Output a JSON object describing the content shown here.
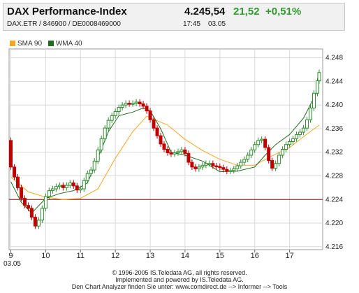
{
  "header": {
    "title": "DAX Performance-Index",
    "price": "4.245,54",
    "change": "21,52",
    "change_pct": "+0,51%",
    "identifiers": "DAX.ETR  /  846900  /  DE0008469000",
    "time": "17:45",
    "date": "03.05"
  },
  "legend": [
    {
      "label": "SMA 90",
      "color": "#f5a623"
    },
    {
      "label": "WMA 40",
      "color": "#1f6b1f"
    }
  ],
  "colors": {
    "up": "#2e8b2e",
    "down": "#c00000",
    "sma": "#f5a623",
    "wma": "#1f6b1f",
    "ref_line": "#8b1a1a",
    "grid": "#d9d9d9"
  },
  "chart_data": {
    "type": "line",
    "title": "DAX Performance-Index",
    "x_ticks": [
      "9",
      "10",
      "11",
      "12",
      "13",
      "14",
      "15",
      "16",
      "17"
    ],
    "x_sublabel": "03.05",
    "y_ticks": [
      "4.248",
      "4.244",
      "4.240",
      "4.236",
      "4.232",
      "4.228",
      "4.224",
      "4.220",
      "4.216"
    ],
    "ylim": [
      4215.5,
      4249.5
    ],
    "reference_line": 4224.0,
    "grid": true,
    "series": [
      {
        "name": "SMA 90",
        "x": [
          9.0,
          9.5,
          10.0,
          10.5,
          11.0,
          11.5,
          12.0,
          12.5,
          12.9,
          13.5,
          14.0,
          14.5,
          15.0,
          15.5,
          16.0,
          16.5,
          17.0,
          17.5,
          17.85
        ],
        "values": [
          4227.8,
          4225.3,
          4224.4,
          4224.0,
          4224.2,
          4225.8,
          4231.0,
          4235.5,
          4238.1,
          4236.6,
          4234.2,
          4232.3,
          4230.8,
          4229.8,
          4229.8,
          4231.4,
          4232.8,
          4235.1,
          4236.6
        ]
      },
      {
        "name": "WMA 40",
        "x": [
          9.0,
          9.3,
          9.6,
          10.0,
          10.4,
          10.8,
          11.2,
          11.5,
          11.8,
          12.1,
          12.5,
          12.8,
          13.0,
          13.3,
          13.6,
          14.0,
          14.5,
          15.0,
          15.5,
          16.0,
          16.3,
          16.6,
          17.0,
          17.4,
          17.85
        ],
        "values": [
          4227.0,
          4223.5,
          4221.7,
          4224.2,
          4225.0,
          4225.5,
          4226.8,
          4231.0,
          4235.5,
          4238.2,
          4238.8,
          4239.5,
          4239.0,
          4236.0,
          4232.0,
          4231.5,
          4230.5,
          4228.7,
          4228.8,
          4229.5,
          4231.5,
          4233.3,
          4235.0,
          4237.8,
          4243.0
        ]
      },
      {
        "name": "DAX",
        "x": [
          8.95,
          9.0,
          9.1,
          9.2,
          9.3,
          9.4,
          9.5,
          9.6,
          9.7,
          9.8,
          9.9,
          10.0,
          10.1,
          10.2,
          10.3,
          10.4,
          10.5,
          10.6,
          10.7,
          10.8,
          10.9,
          11.0,
          11.1,
          11.2,
          11.3,
          11.4,
          11.5,
          11.6,
          11.7,
          11.8,
          11.9,
          12.0,
          12.1,
          12.2,
          12.3,
          12.4,
          12.5,
          12.6,
          12.7,
          12.8,
          12.9,
          13.0,
          13.1,
          13.2,
          13.3,
          13.4,
          13.5,
          13.6,
          13.7,
          13.8,
          13.9,
          14.0,
          14.1,
          14.2,
          14.3,
          14.4,
          14.5,
          14.6,
          14.7,
          14.8,
          14.9,
          15.0,
          15.1,
          15.2,
          15.3,
          15.4,
          15.5,
          15.6,
          15.7,
          15.8,
          15.9,
          16.0,
          16.1,
          16.2,
          16.3,
          16.4,
          16.5,
          16.6,
          16.7,
          16.8,
          16.9,
          17.0,
          17.1,
          17.2,
          17.3,
          17.4,
          17.5,
          17.6,
          17.7,
          17.8,
          17.85
        ],
        "values": [
          4234.0,
          4229.5,
          4227.8,
          4226.0,
          4224.2,
          4223.0,
          4222.5,
          4221.0,
          4219.5,
          4220.5,
          4222.5,
          4224.5,
          4225.5,
          4225.8,
          4226.2,
          4226.4,
          4226.0,
          4226.4,
          4226.8,
          4226.3,
          4225.6,
          4225.8,
          4227.2,
          4228.4,
          4229.0,
          4230.5,
          4232.4,
          4234.3,
          4236.1,
          4237.4,
          4238.2,
          4238.9,
          4239.6,
          4240.0,
          4240.3,
          4240.2,
          4240.3,
          4240.5,
          4240.2,
          4239.8,
          4239.0,
          4237.5,
          4236.1,
          4234.8,
          4233.4,
          4232.5,
          4231.9,
          4231.7,
          4231.9,
          4232.1,
          4232.4,
          4231.8,
          4230.3,
          4229.5,
          4229.2,
          4229.5,
          4229.8,
          4230.1,
          4230.1,
          4229.7,
          4229.6,
          4229.4,
          4229.1,
          4228.8,
          4228.9,
          4229.2,
          4229.7,
          4230.3,
          4230.8,
          4231.5,
          4232.4,
          4233.3,
          4234.0,
          4234.2,
          4232.8,
          4230.6,
          4229.3,
          4230.1,
          4231.5,
          4232.5,
          4233.3,
          4233.8,
          4234.3,
          4235.0,
          4235.4,
          4236.1,
          4237.5,
          4239.5,
          4242.0,
          4244.1,
          4245.5
        ]
      }
    ]
  },
  "footer": {
    "line1": "© 1996-2005 IS.Teledata AG, all rights reserved.",
    "line2": "Implemented and powered by IS.Teledata AG.",
    "line3": "Den Chart Analyzer finden Sie unter: www.comdirect.de --> Informer --> Tools"
  }
}
